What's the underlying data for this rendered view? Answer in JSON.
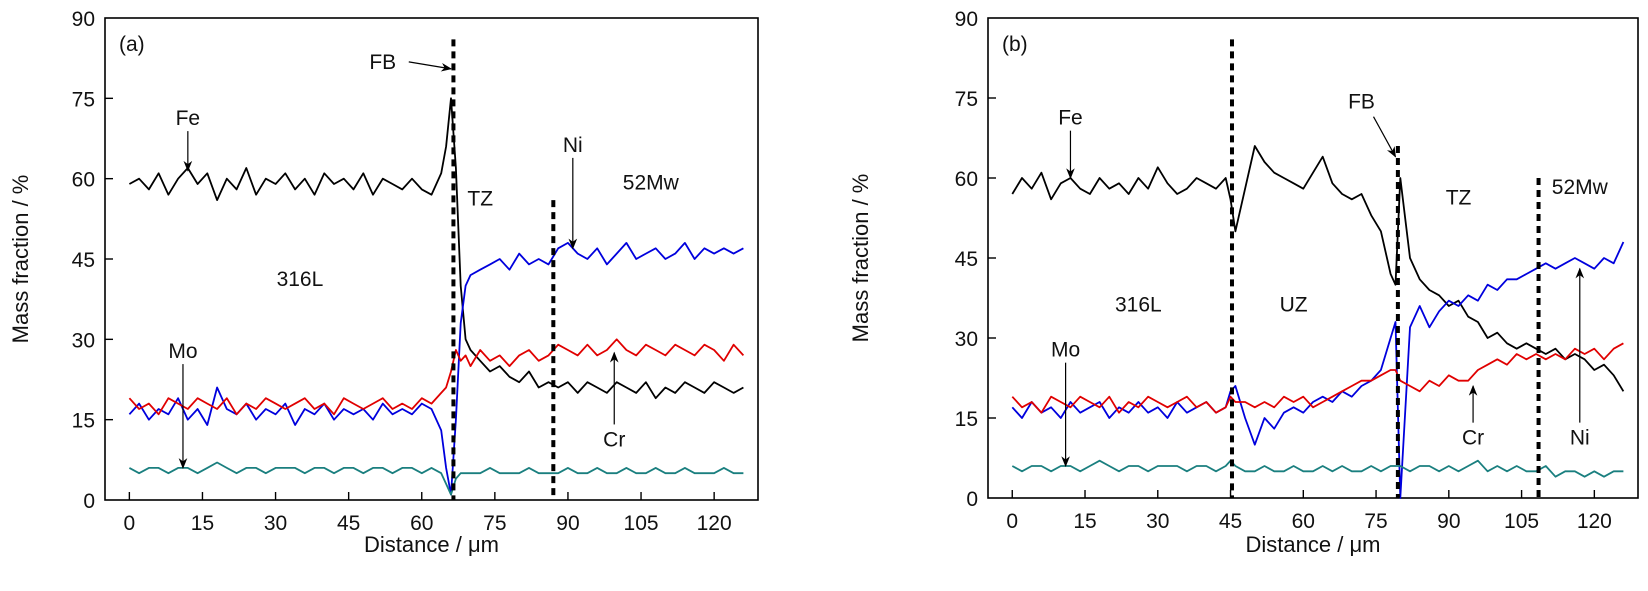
{
  "chart_data": [
    {
      "type": "line",
      "panel_label": "(a)",
      "title": "",
      "xlabel": "Distance / μm",
      "ylabel": "Mass fraction / %",
      "xlim": [
        -5,
        129
      ],
      "ylim": [
        0,
        90
      ],
      "xticks": [
        0,
        15,
        30,
        45,
        60,
        75,
        90,
        105,
        120
      ],
      "yticks": [
        0,
        15,
        30,
        45,
        60,
        75,
        90
      ],
      "grid": false,
      "boundaries": [
        {
          "name": "FB",
          "x": 66.5,
          "y_top": 86
        },
        {
          "name": "TZ-52Mw",
          "x": 87,
          "y_top": 56
        }
      ],
      "region_labels": [
        {
          "text": "316L",
          "x": 35,
          "y": 40
        },
        {
          "text": "TZ",
          "x": 72,
          "y": 55
        },
        {
          "text": "52Mw",
          "x": 107,
          "y": 58
        }
      ],
      "annotations": [
        {
          "text": "FB",
          "x": 52,
          "y": 80.5,
          "arrow_to": [
            66,
            80.5
          ]
        },
        {
          "text": "Fe",
          "x": 12,
          "y": 70,
          "arrow_to": [
            12,
            61.5
          ]
        },
        {
          "text": "Ni",
          "x": 91,
          "y": 65,
          "arrow_to": [
            91,
            47
          ]
        },
        {
          "text": "Mo",
          "x": 11,
          "y": 26.5,
          "arrow_to": [
            11,
            6
          ]
        },
        {
          "text": "Cr",
          "x": 99.5,
          "y": 10,
          "arrow_to": [
            99.5,
            27.5
          ]
        }
      ],
      "x": [
        0,
        2,
        4,
        6,
        8,
        10,
        12,
        14,
        16,
        18,
        20,
        22,
        24,
        26,
        28,
        30,
        32,
        34,
        36,
        38,
        40,
        42,
        44,
        46,
        48,
        50,
        52,
        54,
        56,
        58,
        60,
        62,
        64,
        65,
        66,
        67,
        68,
        69,
        70,
        72,
        74,
        76,
        78,
        80,
        82,
        84,
        86,
        88,
        90,
        92,
        94,
        96,
        98,
        100,
        102,
        104,
        106,
        108,
        110,
        112,
        114,
        116,
        118,
        120,
        122,
        124,
        126
      ],
      "series": [
        {
          "name": "Fe",
          "color": "#000000",
          "values": [
            59,
            60,
            58,
            61,
            57,
            60,
            62,
            59,
            61,
            56,
            60,
            58,
            62,
            57,
            60,
            59,
            61,
            58,
            60,
            57,
            61,
            59,
            60,
            58,
            61,
            57,
            60,
            59,
            58,
            60,
            58,
            57,
            61,
            66,
            75,
            62,
            40,
            30,
            28,
            26,
            24,
            25,
            23,
            22,
            24,
            21,
            22,
            21,
            22,
            20,
            22,
            21,
            20,
            22,
            21,
            20,
            22,
            19,
            21,
            20,
            22,
            21,
            20,
            22,
            21,
            20,
            21
          ]
        },
        {
          "name": "Ni",
          "color": "#0000dd",
          "values": [
            16,
            18,
            15,
            17,
            16,
            19,
            15,
            17,
            14,
            21,
            17,
            16,
            18,
            15,
            17,
            16,
            18,
            14,
            17,
            16,
            18,
            15,
            17,
            16,
            17,
            15,
            18,
            16,
            17,
            16,
            18,
            17,
            13,
            6,
            1,
            15,
            33,
            40,
            42,
            43,
            44,
            45,
            43,
            46,
            44,
            45,
            44,
            47,
            48,
            46,
            45,
            47,
            44,
            46,
            48,
            45,
            46,
            47,
            45,
            46,
            48,
            45,
            47,
            46,
            47,
            46,
            47
          ]
        },
        {
          "name": "Cr",
          "color": "#e00000",
          "values": [
            19,
            17,
            18,
            16,
            19,
            18,
            17,
            19,
            18,
            17,
            19,
            16,
            18,
            17,
            19,
            18,
            17,
            18,
            19,
            17,
            18,
            16,
            19,
            18,
            17,
            18,
            19,
            17,
            18,
            17,
            19,
            18,
            20,
            21,
            24,
            28,
            26,
            27,
            25,
            28,
            26,
            27,
            25,
            27,
            28,
            26,
            27,
            29,
            28,
            27,
            29,
            27,
            28,
            30,
            28,
            27,
            29,
            28,
            27,
            29,
            28,
            27,
            29,
            28,
            26,
            29,
            27
          ]
        },
        {
          "name": "Mo",
          "color": "#1a7f7f",
          "values": [
            6,
            5,
            6,
            6,
            5,
            6,
            6,
            5,
            6,
            7,
            6,
            5,
            6,
            6,
            5,
            6,
            6,
            6,
            5,
            6,
            6,
            5,
            6,
            6,
            5,
            6,
            6,
            5,
            6,
            6,
            5,
            6,
            5,
            3,
            1,
            4,
            5,
            5,
            5,
            5,
            6,
            5,
            5,
            5,
            6,
            5,
            5,
            5,
            6,
            5,
            5,
            6,
            5,
            5,
            6,
            5,
            5,
            6,
            5,
            5,
            6,
            5,
            5,
            5,
            6,
            5,
            5
          ]
        }
      ]
    },
    {
      "type": "line",
      "panel_label": "(b)",
      "title": "",
      "xlabel": "Distance / μm",
      "ylabel": "Mass fraction / %",
      "xlim": [
        -5,
        129
      ],
      "ylim": [
        0,
        90
      ],
      "xticks": [
        0,
        15,
        30,
        45,
        60,
        75,
        90,
        105,
        120
      ],
      "yticks": [
        0,
        15,
        30,
        45,
        60,
        75,
        90
      ],
      "grid": false,
      "boundaries": [
        {
          "name": "316L-UZ",
          "x": 45.3,
          "y_top": 86
        },
        {
          "name": "FB",
          "x": 79.5,
          "y_top": 66
        },
        {
          "name": "TZ-52Mw",
          "x": 108.5,
          "y_top": 60
        }
      ],
      "region_labels": [
        {
          "text": "316L",
          "x": 26,
          "y": 35
        },
        {
          "text": "UZ",
          "x": 58,
          "y": 35
        },
        {
          "text": "TZ",
          "x": 92,
          "y": 55
        },
        {
          "text": "52Mw",
          "x": 117,
          "y": 57
        }
      ],
      "annotations": [
        {
          "text": "FB",
          "x": 72,
          "y": 73,
          "arrow_to": [
            79,
            64
          ]
        },
        {
          "text": "Fe",
          "x": 12,
          "y": 70,
          "arrow_to": [
            12,
            60
          ]
        },
        {
          "text": "Mo",
          "x": 11,
          "y": 26.5,
          "arrow_to": [
            11,
            6
          ]
        },
        {
          "text": "Cr",
          "x": 95,
          "y": 10,
          "arrow_to": [
            95,
            21
          ]
        },
        {
          "text": "Ni",
          "x": 117,
          "y": 10,
          "arrow_to": [
            117,
            43
          ]
        }
      ],
      "x": [
        0,
        2,
        4,
        6,
        8,
        10,
        12,
        14,
        16,
        18,
        20,
        22,
        24,
        26,
        28,
        30,
        32,
        34,
        36,
        38,
        40,
        42,
        44,
        45,
        46,
        48,
        50,
        52,
        54,
        56,
        58,
        60,
        62,
        64,
        66,
        68,
        70,
        72,
        74,
        76,
        78,
        79,
        80,
        82,
        84,
        86,
        88,
        90,
        92,
        94,
        96,
        98,
        100,
        102,
        104,
        106,
        108,
        110,
        112,
        114,
        116,
        118,
        120,
        122,
        124,
        126
      ],
      "series": [
        {
          "name": "Fe",
          "color": "#000000",
          "values": [
            57,
            60,
            58,
            61,
            56,
            59,
            60,
            58,
            57,
            60,
            58,
            59,
            57,
            60,
            58,
            62,
            59,
            57,
            58,
            60,
            59,
            58,
            60,
            56,
            50,
            58,
            66,
            63,
            61,
            60,
            59,
            58,
            61,
            64,
            59,
            57,
            56,
            57,
            53,
            50,
            42,
            40,
            60,
            45,
            41,
            39,
            38,
            36,
            37,
            34,
            33,
            30,
            31,
            29,
            28,
            29,
            28,
            27,
            28,
            26,
            27,
            26,
            24,
            25,
            23,
            20
          ]
        },
        {
          "name": "Ni",
          "color": "#0000dd",
          "values": [
            17,
            15,
            18,
            16,
            17,
            15,
            18,
            16,
            17,
            18,
            15,
            17,
            16,
            18,
            16,
            17,
            15,
            18,
            16,
            17,
            18,
            16,
            17,
            20,
            21,
            15,
            10,
            15,
            13,
            16,
            17,
            16,
            18,
            19,
            18,
            20,
            19,
            21,
            22,
            24,
            30,
            33,
            0,
            32,
            36,
            32,
            35,
            37,
            36,
            38,
            37,
            40,
            39,
            41,
            41,
            42,
            43,
            44,
            43,
            44,
            45,
            44,
            43,
            45,
            44,
            48
          ]
        },
        {
          "name": "Cr",
          "color": "#e00000",
          "values": [
            19,
            17,
            18,
            16,
            19,
            18,
            17,
            19,
            18,
            17,
            19,
            16,
            18,
            17,
            19,
            18,
            17,
            18,
            19,
            17,
            18,
            16,
            17,
            19,
            18,
            18,
            17,
            18,
            17,
            19,
            18,
            19,
            17,
            18,
            19,
            20,
            21,
            22,
            22,
            23,
            24,
            24,
            22,
            21,
            20,
            22,
            21,
            23,
            22,
            22,
            24,
            25,
            26,
            25,
            27,
            26,
            27,
            26,
            27,
            26,
            28,
            27,
            28,
            26,
            28,
            29
          ]
        },
        {
          "name": "Mo",
          "color": "#1a7f7f",
          "values": [
            6,
            5,
            6,
            6,
            5,
            6,
            6,
            5,
            6,
            7,
            6,
            5,
            6,
            6,
            5,
            6,
            6,
            6,
            5,
            6,
            6,
            5,
            6,
            7,
            6,
            5,
            5,
            6,
            5,
            5,
            6,
            5,
            5,
            6,
            5,
            6,
            5,
            5,
            6,
            5,
            6,
            6,
            6,
            5,
            6,
            6,
            5,
            6,
            5,
            6,
            7,
            5,
            6,
            5,
            6,
            5,
            5,
            6,
            4,
            5,
            5,
            4,
            5,
            4,
            5,
            5
          ]
        }
      ]
    }
  ]
}
